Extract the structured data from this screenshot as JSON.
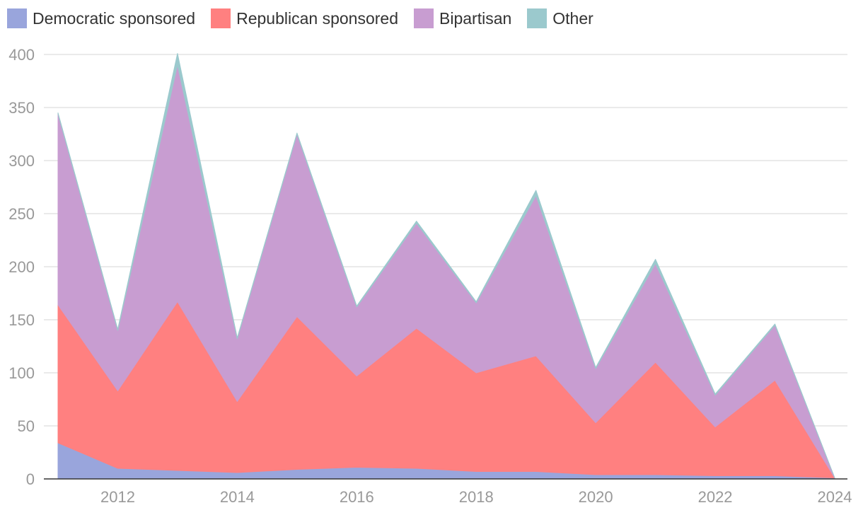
{
  "chart_data": {
    "type": "area",
    "stacked": true,
    "x": [
      2011,
      2012,
      2013,
      2014,
      2015,
      2016,
      2017,
      2018,
      2019,
      2020,
      2021,
      2022,
      2023,
      2024
    ],
    "series": [
      {
        "name": "Democratic sponsored",
        "color": "#99a5dc",
        "values": [
          34,
          10,
          8,
          6,
          9,
          11,
          10,
          7,
          7,
          4,
          4,
          3,
          3,
          1
        ]
      },
      {
        "name": "Republican sponsored",
        "color": "#ff8080",
        "values": [
          130,
          73,
          159,
          67,
          144,
          86,
          132,
          93,
          109,
          49,
          106,
          46,
          90,
          0
        ]
      },
      {
        "name": "Bipartisan",
        "color": "#c89dd1",
        "values": [
          180,
          57,
          223,
          59,
          172,
          65,
          99,
          66,
          151,
          51,
          93,
          30,
          52,
          0
        ]
      },
      {
        "name": "Other",
        "color": "#9bc9cd",
        "values": [
          1,
          1,
          11,
          1,
          1,
          1,
          2,
          1,
          5,
          1,
          4,
          1,
          1,
          0
        ]
      }
    ],
    "y_ticks": [
      "0",
      "50",
      "100",
      "150",
      "200",
      "250",
      "300",
      "350",
      "400"
    ],
    "x_ticks": [
      "2012",
      "2014",
      "2016",
      "2018",
      "2020",
      "2022",
      "2024"
    ],
    "ylim": [
      0,
      400
    ],
    "xlim": [
      2011,
      2024
    ],
    "grid": true,
    "legend_position": "top-left",
    "title": "",
    "xlabel": "",
    "ylabel": ""
  }
}
